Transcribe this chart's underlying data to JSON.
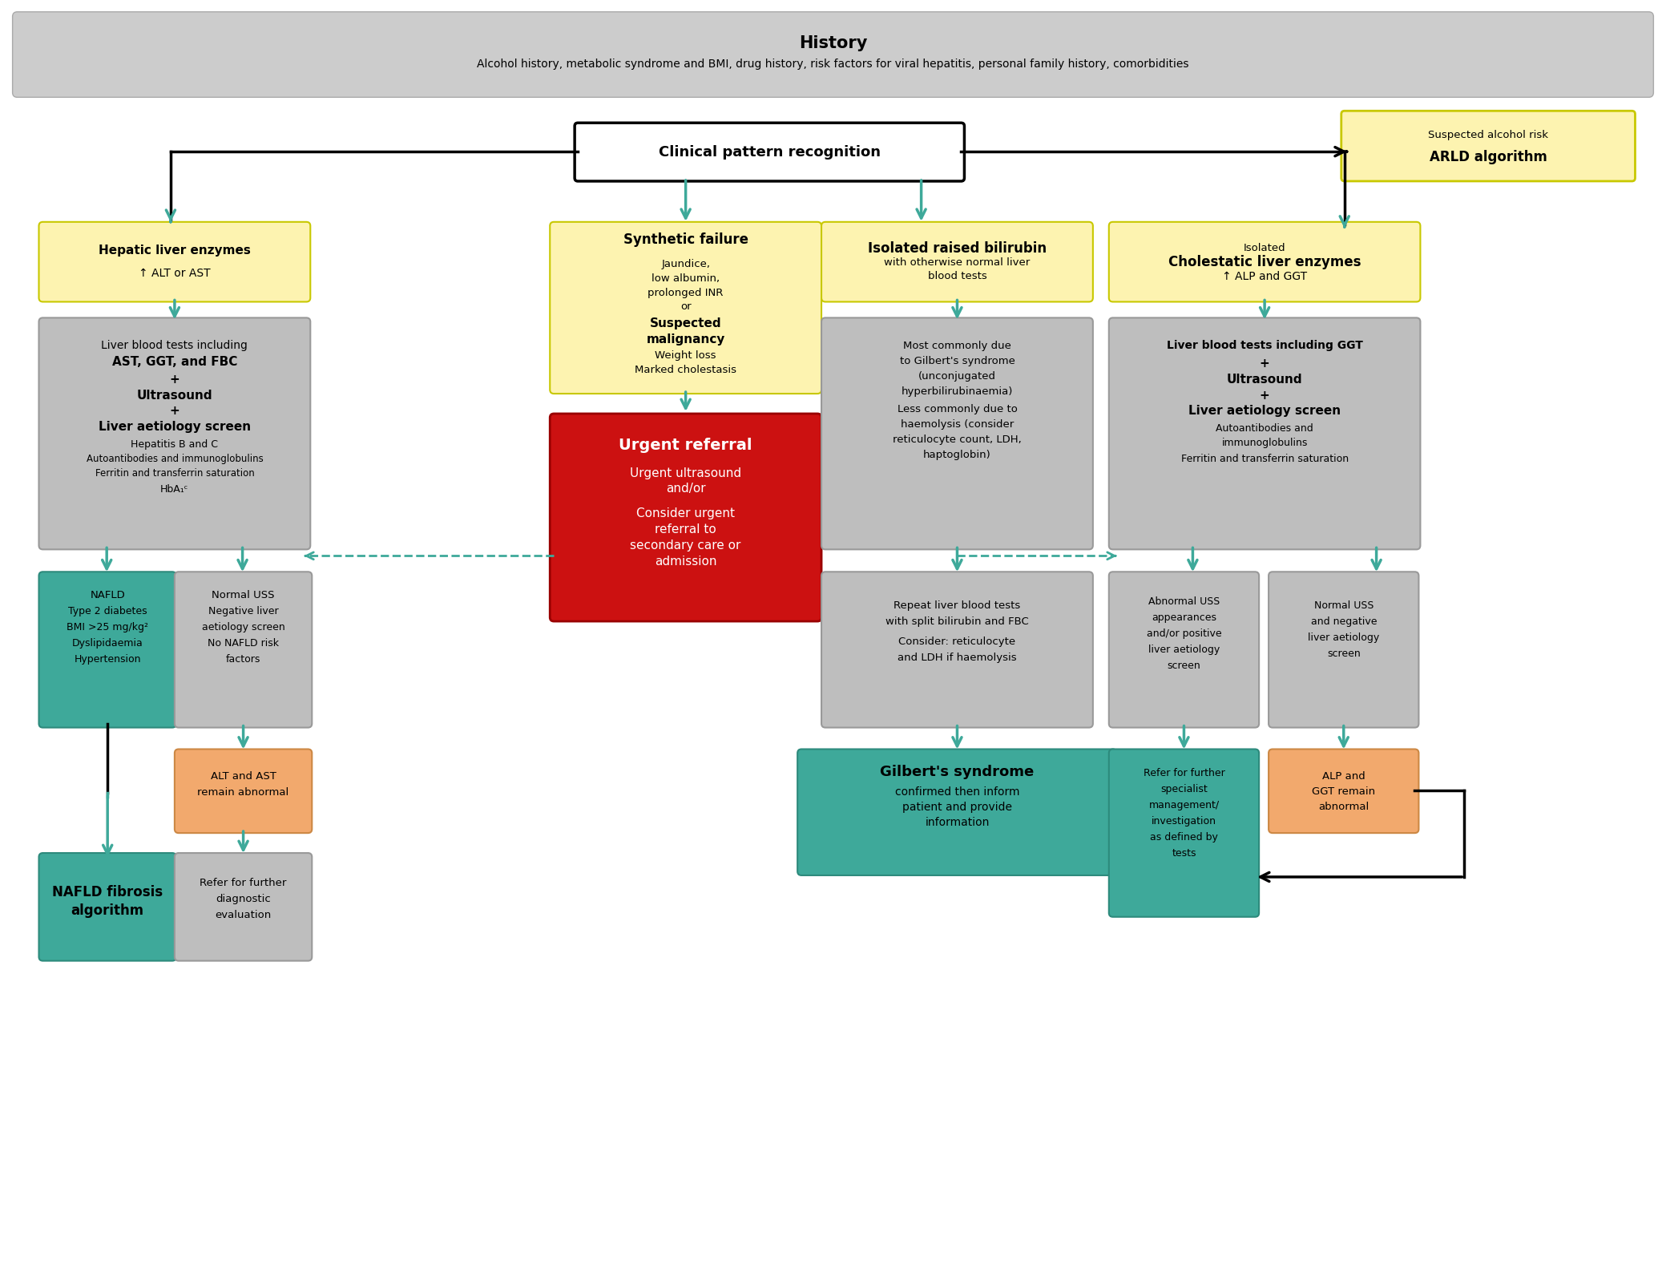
{
  "fig_width": 20.79,
  "fig_height": 15.83,
  "dpi": 100,
  "colors": {
    "yellow": "#FDF3B0",
    "gray_box": "#BEBEBE",
    "teal": "#3EA99A",
    "teal_dark": "#2D8A7C",
    "red": "#CC1111",
    "orange": "#F2A96D",
    "header_gray": "#CCCCCC",
    "white": "#FFFFFF",
    "black": "#000000",
    "arld_border": "#C8C800"
  },
  "header_title": "History",
  "header_sub": "Alcohol history, metabolic syndrome and BMI, drug history, risk factors for viral hepatitis, personal family history, comorbidities",
  "cpr_label": "Clinical pattern recognition"
}
